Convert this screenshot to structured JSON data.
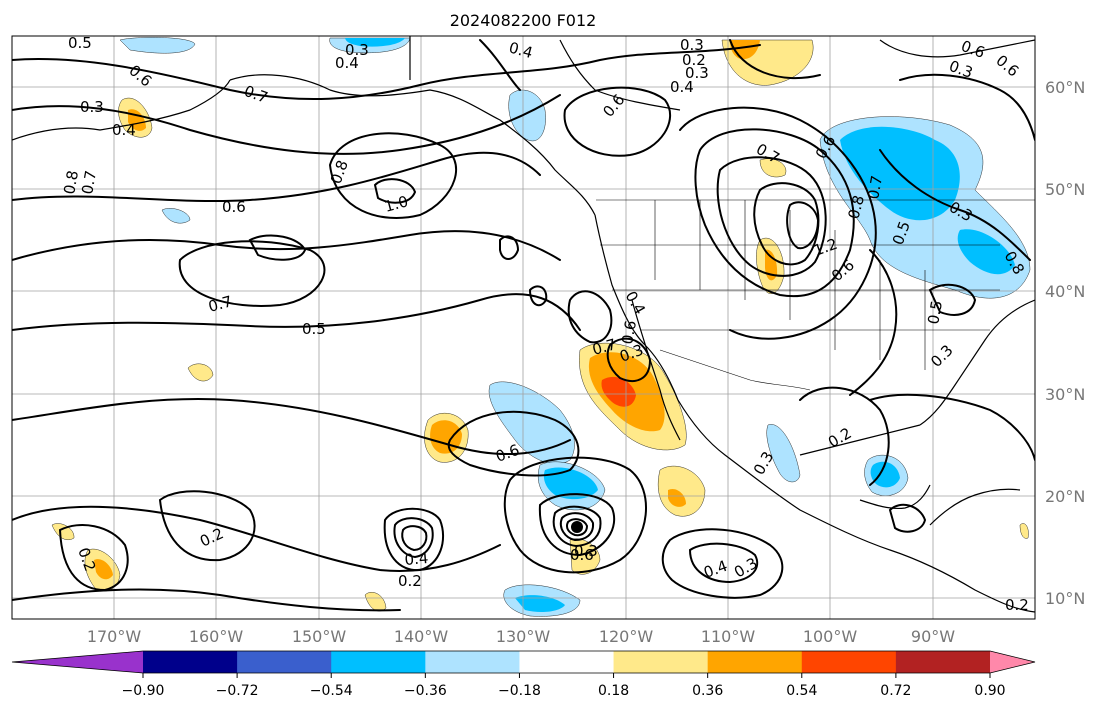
{
  "title": "2024082200 F012",
  "map": {
    "lon_labels": [
      "170°W",
      "160°W",
      "150°W",
      "140°W",
      "130°W",
      "120°W",
      "110°W",
      "100°W",
      "90°W"
    ],
    "lat_labels": [
      "60°N",
      "50°N",
      "40°N",
      "30°N",
      "20°N",
      "10°N"
    ],
    "extent_lon": [
      -180,
      -80
    ],
    "extent_lat": [
      8,
      65
    ],
    "grid": true
  },
  "colorbar": {
    "tick_labels": [
      "−0.90",
      "−0.72",
      "−0.54",
      "−0.36",
      "−0.18",
      "0.18",
      "0.36",
      "0.54",
      "0.72",
      "0.90"
    ],
    "levels": [
      -0.9,
      -0.72,
      -0.54,
      -0.36,
      -0.18,
      0.18,
      0.36,
      0.54,
      0.72,
      0.9
    ],
    "colors": [
      "#9932cc",
      "#00008b",
      "#3a5fcd",
      "#00bfff",
      "#aee3ff",
      "#ffffff",
      "#ffe98a",
      "#ffa500",
      "#ff4500",
      "#b22222",
      "#ff88aa"
    ],
    "extend": "both"
  },
  "contour_labels": [
    "0.5",
    "0.3",
    "0.4",
    "0.6",
    "0.3",
    "0.4",
    "0.7",
    "0.4",
    "0.8",
    "0.7",
    "0.6",
    "1.0",
    "0.8",
    "0.6",
    "0.7",
    "0.5",
    "0.2",
    "0.3",
    "0.4",
    "0.6",
    "0.7",
    "0.6",
    "0.3",
    "0.6",
    "0.8",
    "0.7",
    "0.5",
    "0.3",
    "1.2",
    "0.8",
    "0.6",
    "0.3",
    "0.5",
    "0.4",
    "0.6",
    "0.3",
    "0.2",
    "0.2",
    "0.4",
    "0.2",
    "0.3",
    "0.2",
    "0.4",
    "0.3",
    "0.6",
    "0.6",
    "0.7",
    "0.3",
    "0.2",
    "0.3"
  ]
}
